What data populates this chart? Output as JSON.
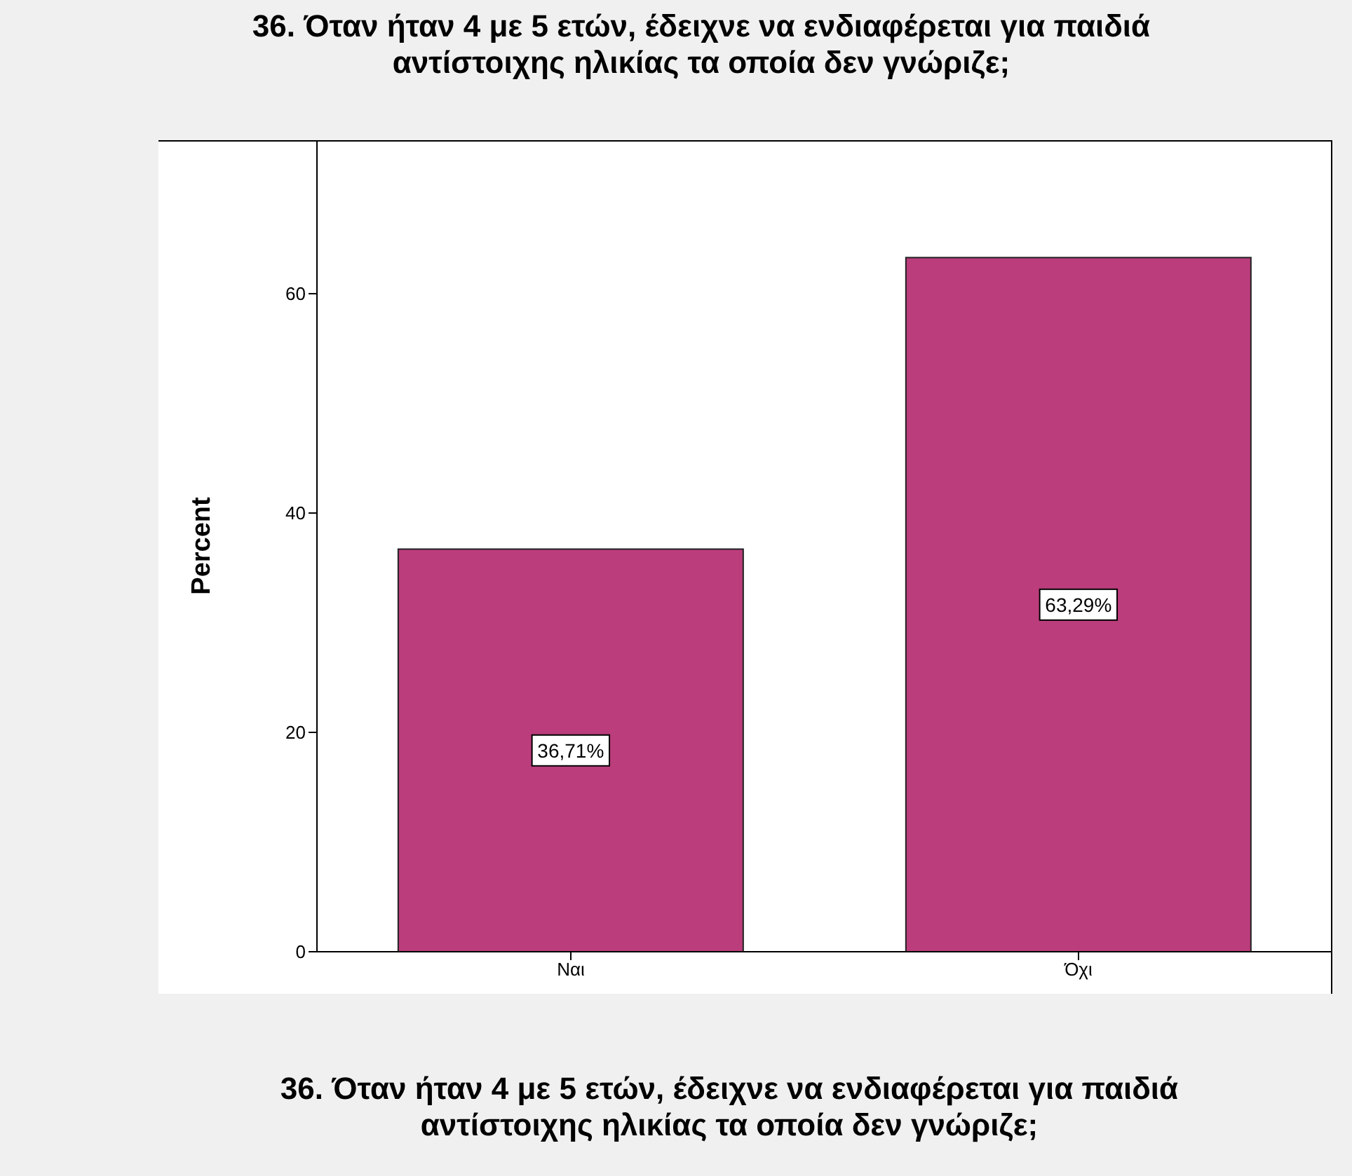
{
  "chart_data": {
    "type": "bar",
    "title": "36. Όταν ήταν 4 με 5 ετών, έδειχνε να ενδιαφέρεται για παιδιά αντίστοιχης ηλικίας τα οποία δεν γνώριζε;",
    "xlabel": "36. Όταν ήταν 4 με 5 ετών, έδειχνε να ενδιαφέρεται για παιδιά αντίστοιχης ηλικίας τα οποία δεν γνώριζε;",
    "ylabel": "Percent",
    "categories": [
      "Ναι",
      "Όχι"
    ],
    "values": [
      36.71,
      63.29
    ],
    "value_labels": [
      "36,71%",
      "63,29%"
    ],
    "color": "#bb3d7c",
    "ylim": [
      0,
      74
    ],
    "yticks": [
      0,
      20,
      40,
      60
    ],
    "grid": false
  }
}
